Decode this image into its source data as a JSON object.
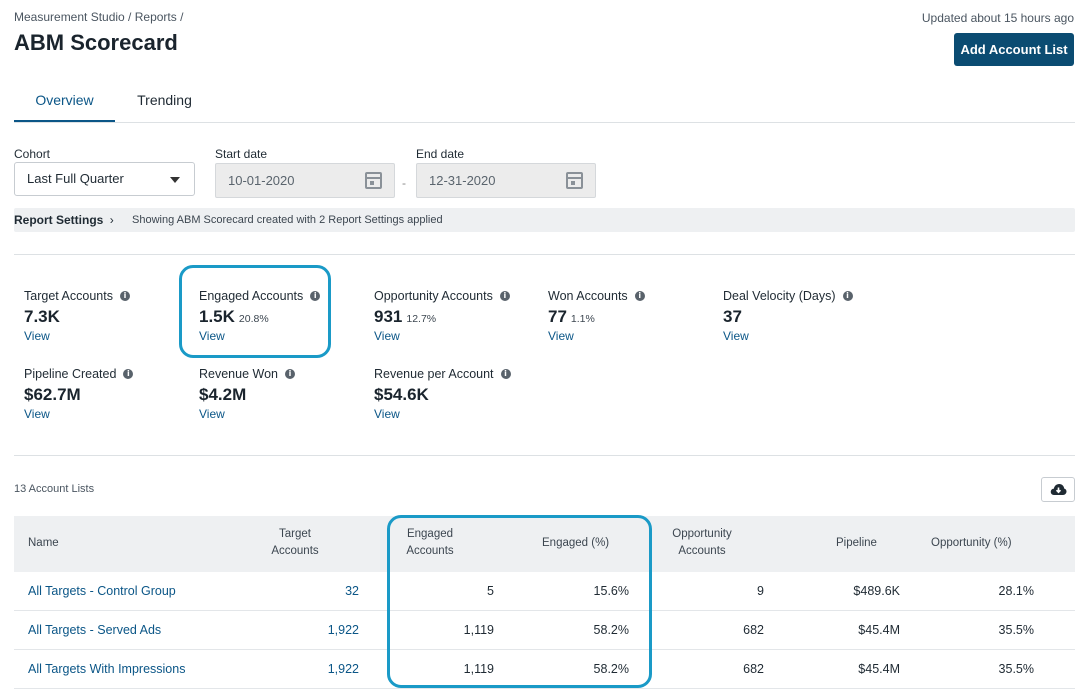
{
  "breadcrumb": "Measurement Studio / Reports /",
  "updated": "Updated about 15 hours ago",
  "title": "ABM Scorecard",
  "add_button": "Add Account List",
  "tabs": [
    {
      "label": "Overview",
      "active": true
    },
    {
      "label": "Trending",
      "active": false
    }
  ],
  "filters": {
    "cohort_label": "Cohort",
    "cohort_value": "Last Full Quarter",
    "start_label": "Start date",
    "start_value": "10-01-2020",
    "end_label": "End date",
    "end_value": "12-31-2020",
    "separator": "-"
  },
  "settings": {
    "link": "Report Settings",
    "text": "Showing ABM Scorecard created with 2 Report Settings applied"
  },
  "metrics": [
    {
      "label": "Target Accounts",
      "value": "7.3K",
      "pct": "",
      "view": "View"
    },
    {
      "label": "Engaged Accounts",
      "value": "1.5K",
      "pct": "20.8%",
      "view": "View"
    },
    {
      "label": "Opportunity Accounts",
      "value": "931",
      "pct": "12.7%",
      "view": "View"
    },
    {
      "label": "Won Accounts",
      "value": "77",
      "pct": "1.1%",
      "view": "View"
    },
    {
      "label": "Deal Velocity (Days)",
      "value": "37",
      "pct": "",
      "view": "View"
    },
    {
      "label": "Pipeline Created",
      "value": "$62.7M",
      "pct": "",
      "view": "View"
    },
    {
      "label": "Revenue Won",
      "value": "$4.2M",
      "pct": "",
      "view": "View"
    },
    {
      "label": "Revenue per Account",
      "value": "$54.6K",
      "pct": "",
      "view": "View"
    }
  ],
  "lists_count": "13 Account Lists",
  "table": {
    "headers": {
      "name": "Name",
      "target_1": "Target",
      "target_2": "Accounts",
      "engaged_1": "Engaged",
      "engaged_2": "Accounts",
      "engaged_pct": "Engaged (%)",
      "opp_1": "Opportunity",
      "opp_2": "Accounts",
      "pipeline": "Pipeline",
      "opp_pct": "Opportunity (%)"
    },
    "rows": [
      {
        "name": "All Targets - Control Group",
        "target": "32",
        "engaged": "5",
        "engaged_pct": "15.6%",
        "opp": "9",
        "pipeline": "$489.6K",
        "opp_pct": "28.1%"
      },
      {
        "name": "All Targets - Served Ads",
        "target": "1,922",
        "engaged": "1,119",
        "engaged_pct": "58.2%",
        "opp": "682",
        "pipeline": "$45.4M",
        "opp_pct": "35.5%"
      },
      {
        "name": "All Targets With Impressions",
        "target": "1,922",
        "engaged": "1,119",
        "engaged_pct": "58.2%",
        "opp": "682",
        "pipeline": "$45.4M",
        "opp_pct": "35.5%"
      }
    ]
  },
  "icons": {
    "info": "info-icon",
    "calendar": "calendar-icon",
    "caret": "chevron-down-icon",
    "download": "cloud-download-icon",
    "chevron": "chevron-right-icon"
  },
  "colors": {
    "primary": "#0b4c72",
    "link": "#0b5687",
    "highlight": "#1a9ac7"
  }
}
